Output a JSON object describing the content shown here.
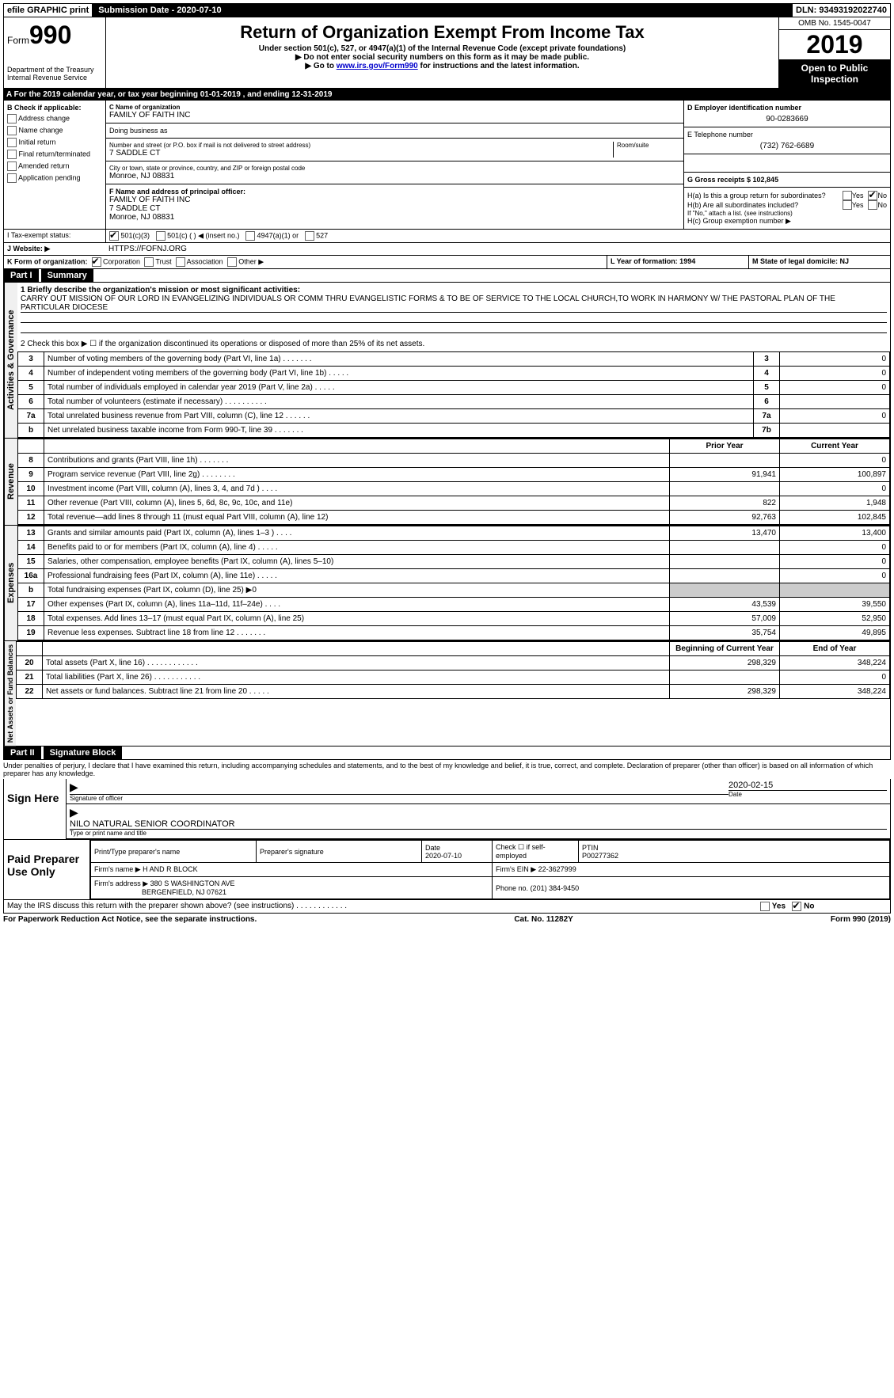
{
  "top": {
    "efile": "efile GRAPHIC print",
    "submission": "Submission Date - 2020-07-10",
    "dln": "DLN: 93493192022740"
  },
  "header": {
    "form_prefix": "Form",
    "form_num": "990",
    "dept": "Department of the Treasury",
    "irs": "Internal Revenue Service",
    "title": "Return of Organization Exempt From Income Tax",
    "sub1": "Under section 501(c), 527, or 4947(a)(1) of the Internal Revenue Code (except private foundations)",
    "sub2": "▶ Do not enter social security numbers on this form as it may be made public.",
    "sub3_pre": "▶ Go to ",
    "sub3_link": "www.irs.gov/Form990",
    "sub3_post": " for instructions and the latest information.",
    "omb": "OMB No. 1545-0047",
    "year": "2019",
    "open": "Open to Public Inspection"
  },
  "rowA": "A    For the 2019 calendar year, or tax year beginning 01-01-2019       , and ending 12-31-2019",
  "colB": {
    "title": "B Check if applicable:",
    "items": [
      "Address change",
      "Name change",
      "Initial return",
      "Final return/terminated",
      "Amended return",
      "Application pending"
    ]
  },
  "colC": {
    "name_lbl": "C Name of organization",
    "name": "FAMILY OF FAITH INC",
    "dba_lbl": "Doing business as",
    "dba": "",
    "street_lbl": "Number and street (or P.O. box if mail is not delivered to street address)",
    "room_lbl": "Room/suite",
    "street": "7 SADDLE CT",
    "city_lbl": "City or town, state or province, country, and ZIP or foreign postal code",
    "city": "Monroe, NJ  08831",
    "f_lbl": "F  Name and address of principal officer:",
    "f_name": "FAMILY OF FAITH INC",
    "f_street": "7 SADDLE CT",
    "f_city": "Monroe, NJ  08831"
  },
  "colD": {
    "d_lbl": "D Employer identification number",
    "d_val": "90-0283669",
    "e_lbl": "E Telephone number",
    "e_val": "(732) 762-6689",
    "g_lbl": "G Gross receipts $ 102,845",
    "ha": "H(a)   Is this a group return for subordinates?",
    "hb": "H(b)   Are all subordinates included?",
    "hb_note": "If \"No,\" attach a list. (see instructions)",
    "hc": "H(c)   Group exemption number ▶",
    "yes": "Yes",
    "no": "No"
  },
  "rowI": {
    "label": "I      Tax-exempt status:",
    "opts": [
      "501(c)(3)",
      "501(c) (  ) ◀ (insert no.)",
      "4947(a)(1) or",
      "527"
    ]
  },
  "rowJ": {
    "label": "J     Website: ▶",
    "val": "HTTPS://FOFNJ.ORG"
  },
  "rowK": {
    "label": "K Form of organization:",
    "opts": [
      "Corporation",
      "Trust",
      "Association",
      "Other ▶"
    ],
    "l_lbl": "L Year of formation: 1994",
    "m_lbl": "M State of legal domicile: NJ"
  },
  "partI": {
    "title": "Part I",
    "sub": "Summary",
    "line1_lbl": "1  Briefly describe the organization's mission or most significant activities:",
    "line1_text": "CARRY OUT MISSION OF OUR LORD IN EVANGELIZING INDIVIDUALS OR COMM THRU EVANGELISTIC FORMS & TO BE OF SERVICE TO THE LOCAL CHURCH,TO WORK IN HARMONY W/ THE PASTORAL PLAN OF THE PARTICULAR DIOCESE",
    "line2": "2     Check this box ▶ ☐  if the organization discontinued its operations or disposed of more than 25% of its net assets.",
    "gov_label": "Activities & Governance",
    "rev_label": "Revenue",
    "exp_label": "Expenses",
    "net_label": "Net Assets or Fund Balances",
    "gov_lines": [
      {
        "n": "3",
        "d": "Number of voting members of the governing body (Part VI, line 1a)   .     .     .     .     .     .     .",
        "l": "3",
        "v": "0"
      },
      {
        "n": "4",
        "d": "Number of independent voting members of the governing body (Part VI, line 1b)  .     .     .     .     .",
        "l": "4",
        "v": "0"
      },
      {
        "n": "5",
        "d": "Total number of individuals employed in calendar year 2019 (Part V, line 2a)   .     .     .     .     .",
        "l": "5",
        "v": "0"
      },
      {
        "n": "6",
        "d": "Total number of volunteers (estimate if necessary)   .     .     .     .     .     .     .     .     .     .",
        "l": "6",
        "v": ""
      },
      {
        "n": "7a",
        "d": "Total unrelated business revenue from Part VIII, column (C), line 12   .     .     .     .     .     .",
        "l": "7a",
        "v": "0"
      },
      {
        "n": "b",
        "d": "Net unrelated business taxable income from Form 990-T, line 39   .     .     .     .     .     .     .",
        "l": "7b",
        "v": ""
      }
    ],
    "cols": {
      "prior": "Prior Year",
      "current": "Current Year"
    },
    "rev_lines": [
      {
        "n": "8",
        "d": "Contributions and grants (Part VIII, line 1h)   .     .     .     .     .     .     .",
        "p": "",
        "c": "0"
      },
      {
        "n": "9",
        "d": "Program service revenue (Part VIII, line 2g)  .     .     .     .     .     .     .     .",
        "p": "91,941",
        "c": "100,897"
      },
      {
        "n": "10",
        "d": "Investment income (Part VIII, column (A), lines 3, 4, and 7d )   .     .     .     .",
        "p": "",
        "c": "0"
      },
      {
        "n": "11",
        "d": "Other revenue (Part VIII, column (A), lines 5, 6d, 8c, 9c, 10c, and 11e)",
        "p": "822",
        "c": "1,948"
      },
      {
        "n": "12",
        "d": "Total revenue—add lines 8 through 11 (must equal Part VIII, column (A), line 12)",
        "p": "92,763",
        "c": "102,845"
      }
    ],
    "exp_lines": [
      {
        "n": "13",
        "d": "Grants and similar amounts paid (Part IX, column (A), lines 1–3 )  .     .     .     .",
        "p": "13,470",
        "c": "13,400"
      },
      {
        "n": "14",
        "d": "Benefits paid to or for members (Part IX, column (A), line 4)   .     .     .     .     .",
        "p": "",
        "c": "0"
      },
      {
        "n": "15",
        "d": "Salaries, other compensation, employee benefits (Part IX, column (A), lines 5–10)",
        "p": "",
        "c": "0"
      },
      {
        "n": "16a",
        "d": "Professional fundraising fees (Part IX, column (A), line 11e)   .     .     .     .     .",
        "p": "",
        "c": "0"
      },
      {
        "n": "b",
        "d": "Total fundraising expenses (Part IX, column (D), line 25) ▶0",
        "shade": true
      },
      {
        "n": "17",
        "d": "Other expenses (Part IX, column (A), lines 11a–11d, 11f–24e)  .     .     .     .",
        "p": "43,539",
        "c": "39,550"
      },
      {
        "n": "18",
        "d": "Total expenses. Add lines 13–17 (must equal Part IX, column (A), line 25)",
        "p": "57,009",
        "c": "52,950"
      },
      {
        "n": "19",
        "d": "Revenue less expenses. Subtract line 18 from line 12  .     .     .     .     .     .     .",
        "p": "35,754",
        "c": "49,895"
      }
    ],
    "net_cols": {
      "beg": "Beginning of Current Year",
      "end": "End of Year"
    },
    "net_lines": [
      {
        "n": "20",
        "d": "Total assets (Part X, line 16)  .     .     .     .     .     .     .     .     .     .     .     .",
        "p": "298,329",
        "c": "348,224"
      },
      {
        "n": "21",
        "d": "Total liabilities (Part X, line 26)  .     .     .     .     .     .     .     .     .     .     .",
        "p": "",
        "c": "0"
      },
      {
        "n": "22",
        "d": "Net assets or fund balances. Subtract line 21 from line 20  .     .     .     .     .",
        "p": "298,329",
        "c": "348,224"
      }
    ]
  },
  "partII": {
    "title": "Part II",
    "sub": "Signature Block",
    "jurat": "Under penalties of perjury, I declare that I have examined this return, including accompanying schedules and statements, and to the best of my knowledge and belief, it is true, correct, and complete. Declaration of preparer (other than officer) is based on all information of which preparer has any knowledge.",
    "sign_here": "Sign Here",
    "sig_date": "2020-02-15",
    "sig_officer": "Signature of officer",
    "date_lbl": "Date",
    "name_title": "NILO NATURAL  SENIOR COORDINATOR",
    "name_title_lbl": "Type or print name and title",
    "paid": "Paid Preparer Use Only",
    "prep_name_lbl": "Print/Type preparer's name",
    "prep_sig_lbl": "Preparer's signature",
    "prep_date_lbl": "Date",
    "prep_date": "2020-07-10",
    "check_self": "Check ☐ if self-employed",
    "ptin_lbl": "PTIN",
    "ptin": "P00277362",
    "firm_name_lbl": "Firm's name    ▶",
    "firm_name": "H AND R BLOCK",
    "firm_ein_lbl": "Firm's EIN ▶",
    "firm_ein": "22-3627999",
    "firm_addr_lbl": "Firm's address ▶",
    "firm_addr1": "380 S WASHINGTON AVE",
    "firm_addr2": "BERGENFIELD, NJ  07621",
    "phone_lbl": "Phone no.",
    "phone": "(201) 384-9450",
    "discuss": "May the IRS discuss this return with the preparer shown above? (see instructions)   .     .     .     .     .     .     .     .     .     .     .     ."
  },
  "footer": {
    "left": "For Paperwork Reduction Act Notice, see the separate instructions.",
    "center": "Cat. No. 11282Y",
    "right": "Form 990 (2019)"
  }
}
